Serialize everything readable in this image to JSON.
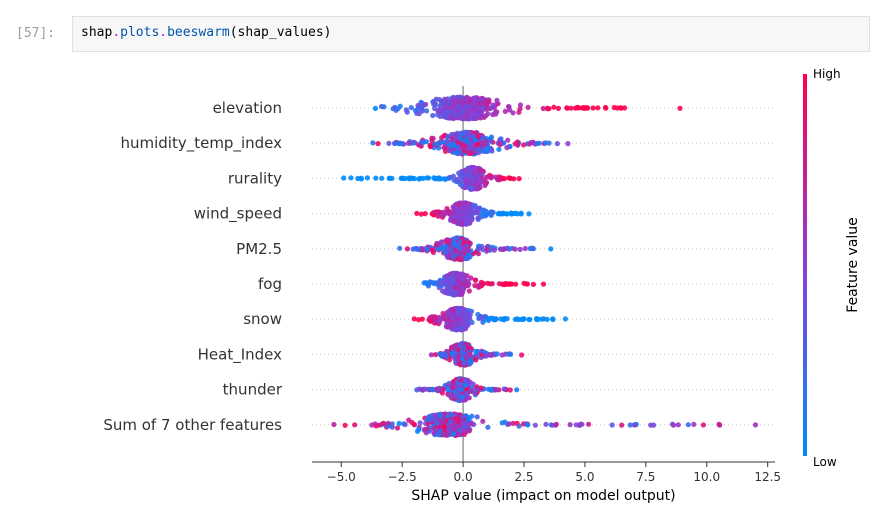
{
  "cell": {
    "prompt": "[57]:",
    "code": {
      "obj": "shap",
      "dot1": ".",
      "attr1": "plots",
      "dot2": ".",
      "attr2": "beeswarm",
      "args": "(shap_values)"
    }
  },
  "colors": {
    "low": "#008bfb",
    "high": "#ff0051",
    "zero_line": "#999999",
    "grid": "#cccccc"
  },
  "chart_data": {
    "type": "scatter",
    "subtype": "beeswarm",
    "xlabel": "SHAP value (impact on model output)",
    "xlim": [
      -6.2,
      12.8
    ],
    "xticks": [
      -5.0,
      -2.5,
      0.0,
      2.5,
      5.0,
      7.5,
      10.0,
      12.5
    ],
    "xtick_labels": [
      "−5.0",
      "−2.5",
      "0.0",
      "2.5",
      "5.0",
      "7.5",
      "10.0",
      "12.5"
    ],
    "colorbar": {
      "label": "Feature value",
      "high": "High",
      "low": "Low"
    },
    "features": [
      {
        "name": "elevation",
        "min": -3.6,
        "max": 8.9,
        "spread": 3.0,
        "center": 0.0,
        "low_side": "left"
      },
      {
        "name": "humidity_temp_index",
        "min": -3.7,
        "max": 4.3,
        "spread": 2.2,
        "center": 0.2,
        "low_side": "mixed"
      },
      {
        "name": "rurality",
        "min": -4.9,
        "max": 2.3,
        "spread": 1.0,
        "center": 0.4,
        "low_side": "left"
      },
      {
        "name": "wind_speed",
        "min": -1.9,
        "max": 2.7,
        "spread": 1.1,
        "center": 0.0,
        "low_side": "right"
      },
      {
        "name": "PM2.5",
        "min": -2.6,
        "max": 3.6,
        "spread": 1.3,
        "center": -0.2,
        "low_side": "mixed"
      },
      {
        "name": "fog",
        "min": -1.6,
        "max": 3.3,
        "spread": 1.1,
        "center": -0.3,
        "low_side": "left"
      },
      {
        "name": "snow",
        "min": -2.0,
        "max": 4.2,
        "spread": 1.2,
        "center": -0.2,
        "low_side": "right"
      },
      {
        "name": "Heat_Index",
        "min": -1.3,
        "max": 2.4,
        "spread": 0.9,
        "center": 0.0,
        "low_side": "mixed"
      },
      {
        "name": "thunder",
        "min": -1.9,
        "max": 2.2,
        "spread": 0.9,
        "center": -0.1,
        "low_side": "mixed"
      },
      {
        "name": "Sum of 7 other features",
        "min": -5.3,
        "max": 12.0,
        "spread": 2.6,
        "center": -0.6,
        "low_side": "mixed"
      }
    ]
  }
}
